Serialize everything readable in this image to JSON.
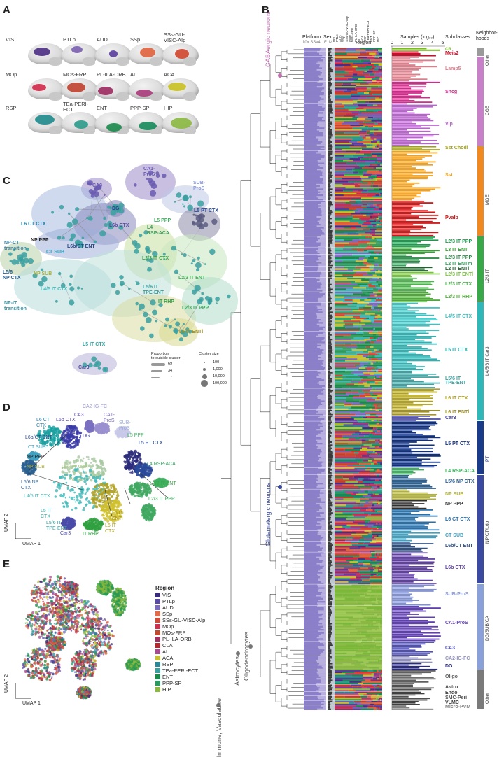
{
  "panels": {
    "a": "A",
    "b": "B",
    "c": "C",
    "d": "D",
    "e": "E"
  },
  "panel_a": {
    "regions": [
      {
        "label": "VIS",
        "color": "#4b2d83"
      },
      {
        "label": "PTLp",
        "color": "#7a5fb0"
      },
      {
        "label": "AUD",
        "color": "#5a3c9c"
      },
      {
        "label": "SSp",
        "color": "#e0603c"
      },
      {
        "label": "SSs-GU-\nVISC-AIp",
        "color": "#d0442c"
      },
      {
        "label": "MOp",
        "color": "#d22a4a"
      },
      {
        "label": "MOs-FRP",
        "color": "#c0402e"
      },
      {
        "label": "PL-ILA-ORB",
        "color": "#9c2a60"
      },
      {
        "label": "AI",
        "color": "#a93a7a"
      },
      {
        "label": "ACA",
        "color": "#c8c020"
      },
      {
        "label": "RSP",
        "color": "#1d8a8a"
      },
      {
        "label": "TEa-PERI-\nECT",
        "color": "#2a9a8a"
      },
      {
        "label": "ENT",
        "color": "#1a8a4a"
      },
      {
        "label": "PPP-SP",
        "color": "#158a5a"
      },
      {
        "label": "HIP",
        "color": "#8ab840"
      }
    ]
  },
  "panel_b": {
    "headers": {
      "platform": "Platform",
      "platform_sub": "10x SSv4",
      "sex": "Sex",
      "sex_sub": "F  M",
      "region": "Region",
      "samples": "Samples (log₁₀)",
      "subclasses": "Subclasses",
      "neighborhoods": "Neighbor-\nhoods"
    },
    "samples_ticks": [
      "0",
      "1",
      "2",
      "3",
      "4",
      "5"
    ],
    "region_cols": [
      "VIS",
      "PTLp",
      "AUD",
      "SSp",
      "SSs-GU-VISC-AIp",
      "MOp",
      "MOs-FRP",
      "PL-ILA-ORB",
      "AI",
      "ACA",
      "RSP",
      "TEa-PERI-ECT",
      "ENT",
      "PPP-SP",
      "HIP"
    ],
    "tree_labels": {
      "gaba": "GABAergic neurons",
      "glut": "Glutamatergic neurons",
      "oligo": "Oligodendrocytes",
      "astro": "Astrocytes",
      "immune": "Immune, Vasculature"
    },
    "subclasses": [
      {
        "label": "CR",
        "color": "#7ab82a"
      },
      {
        "label": "Meis2",
        "color": "#c8102e"
      },
      {
        "label": "Lamp5",
        "color": "#da808c"
      },
      {
        "label": "Sncg",
        "color": "#d22a8a"
      },
      {
        "label": "Vip",
        "color": "#b864cc"
      },
      {
        "label": "Sst Chodl",
        "color": "#a0a010"
      },
      {
        "label": "Sst",
        "color": "#f0a020"
      },
      {
        "label": "Pvalb",
        "color": "#d01818"
      },
      {
        "label": "L2/3 IT PPP",
        "color": "#1c9a4c"
      },
      {
        "label": "L3 IT ENT",
        "color": "#3aa03a"
      },
      {
        "label": "L2/3 IT PPP",
        "color": "#2e8b4a"
      },
      {
        "label": "L2 IT ENTm",
        "color": "#3aa060"
      },
      {
        "label": "L2 IT ENTl",
        "color": "#226030"
      },
      {
        "label": "L2/3 IT ENTl",
        "color": "#7ac040"
      },
      {
        "label": "L2/3 IT CTX",
        "color": "#50b050"
      },
      {
        "label": "L2/3 IT RHP",
        "color": "#4ea838"
      },
      {
        "label": "L4/5 IT CTX",
        "color": "#40c0c0"
      },
      {
        "label": "L5 IT CTX",
        "color": "#30b0b0"
      },
      {
        "label": "L5/6 IT\nTPE-ENT",
        "color": "#40a0a0"
      },
      {
        "label": "L6 IT CTX",
        "color": "#b0a020"
      },
      {
        "label": "L6 IT ENTl",
        "color": "#a09020"
      },
      {
        "label": "Car3",
        "color": "#4040a0"
      },
      {
        "label": "L5 PT CTX",
        "color": "#103080"
      },
      {
        "label": "L4 RSP-ACA",
        "color": "#40b060"
      },
      {
        "label": "L5/6 NP CTX",
        "color": "#2e6090"
      },
      {
        "label": "NP SUB",
        "color": "#b0b040"
      },
      {
        "label": "NP PPP",
        "color": "#303030"
      },
      {
        "label": "L6 CT CTX",
        "color": "#2a70a8"
      },
      {
        "label": "CT SUB",
        "color": "#40a0c0"
      },
      {
        "label": "L6b/CT ENT",
        "color": "#305080"
      },
      {
        "label": "L6b CTX",
        "color": "#6040a0"
      },
      {
        "label": "SUB-ProS",
        "color": "#8090d0"
      },
      {
        "label": "CA1-ProS",
        "color": "#6040b0"
      },
      {
        "label": "CA3",
        "color": "#5050b0"
      },
      {
        "label": "CA2-IG-FC",
        "color": "#9090c0"
      },
      {
        "label": "DG",
        "color": "#2a2a80"
      },
      {
        "label": "Oligo",
        "color": "#606060"
      },
      {
        "label": "Astro",
        "color": "#505050"
      },
      {
        "label": "Endo",
        "color": "#404040"
      },
      {
        "label": "SMC-Peri",
        "color": "#505050"
      },
      {
        "label": "VLMC",
        "color": "#404040"
      },
      {
        "label": "Micro-PVM",
        "color": "#808080"
      }
    ],
    "neighborhoods": [
      {
        "label": "Other",
        "color": "#9a9a9a"
      },
      {
        "label": "CGE",
        "color": "#c880c8"
      },
      {
        "label": "MGE",
        "color": "#f08a20"
      },
      {
        "label": "L2/3 IT",
        "color": "#38a848"
      },
      {
        "label": "L4/5/6 IT Car3",
        "color": "#30b8b8"
      },
      {
        "label": "PT",
        "color": "#1a3a8a"
      },
      {
        "label": "NP/CT/L6b",
        "color": "#3a4aa0"
      },
      {
        "label": "DG/SUB/CA",
        "color": "#8aa0d8"
      },
      {
        "label": "Other",
        "color": "#7a7a7a"
      }
    ]
  },
  "panel_c": {
    "clusters": [
      {
        "label": "CA1-\nProS",
        "color": "#6a5ab0"
      },
      {
        "label": "CA3",
        "color": "#6a5ab0"
      },
      {
        "label": "DG",
        "color": "#3a3a90"
      },
      {
        "label": "SUB-\nProS",
        "color": "#8a9ad8"
      },
      {
        "label": "L5 PT CTX",
        "color": "#2a4a9a"
      },
      {
        "label": "L6 CT CTX",
        "color": "#2a80a8"
      },
      {
        "label": "L6b CTX",
        "color": "#5a4aa0"
      },
      {
        "label": "L5 PPP",
        "color": "#40b060"
      },
      {
        "label": "NP PPP",
        "color": "#222222"
      },
      {
        "label": "L6b/CT ENT",
        "color": "#2a4a8a"
      },
      {
        "label": "L4\nRSP-ACA",
        "color": "#3aa060"
      },
      {
        "label": "NP-CT\ntransition",
        "color": "#3a80a0"
      },
      {
        "label": "CT SUB",
        "color": "#3aa0c0"
      },
      {
        "label": "L2/3 IT CTX",
        "color": "#38a848"
      },
      {
        "label": "NP SUB",
        "color": "#a8b040"
      },
      {
        "label": "L5/6\nNP CTX",
        "color": "#2a6090"
      },
      {
        "label": "L2/3 IT ENT",
        "color": "#4ab060"
      },
      {
        "label": "L4/5 IT CTX",
        "color": "#40b8b8"
      },
      {
        "label": "L5/6 IT\nTPE-ENT",
        "color": "#3a9a9a"
      },
      {
        "label": "NP-IT\ntransition",
        "color": "#3a90a0"
      },
      {
        "label": "IT RHP",
        "color": "#30a040"
      },
      {
        "label": "L2/3 IT PPP",
        "color": "#40a860"
      },
      {
        "label": "L5 IT CTX",
        "color": "#30a8a8"
      },
      {
        "label": "L6 IT ENTl",
        "color": "#a09020"
      },
      {
        "label": "Car3",
        "color": "#4a4aa0"
      }
    ],
    "legend": {
      "prop_title": "Proportion\nto outside cluster",
      "prop_values": [
        "69",
        "34",
        "17"
      ],
      "size_title": "Cluster size",
      "size_values": [
        "100",
        "1,000",
        "10,000",
        "100,000"
      ]
    }
  },
  "panel_d": {
    "labels": [
      {
        "label": "CA2-IG-FC",
        "color": "#9a9ad0"
      },
      {
        "label": "CA1-\nProS",
        "color": "#7a6ab8"
      },
      {
        "label": "CA3",
        "color": "#5a4aa8"
      },
      {
        "label": "L6 CT\nCTX",
        "color": "#2a80a8"
      },
      {
        "label": "L6b CTX",
        "color": "#5a4aa0"
      },
      {
        "label": "DG",
        "color": "#3a3a90"
      },
      {
        "label": "SUB-\nProS",
        "color": "#9aa8d8"
      },
      {
        "label": "L5 PPP",
        "color": "#40b060"
      },
      {
        "label": "L6b/CT ENT",
        "color": "#2a4a8a"
      },
      {
        "label": "L5 PT CTX",
        "color": "#1a3a8a"
      },
      {
        "label": "CT SUB",
        "color": "#3aa0c0"
      },
      {
        "label": "NP PPP",
        "color": "#222222"
      },
      {
        "label": "NP SUB",
        "color": "#a8b040"
      },
      {
        "label": "L2/3 IT CTX",
        "color": "#a8c880"
      },
      {
        "label": "L4 RSP-ACA",
        "color": "#3aa060"
      },
      {
        "label": "L5/6 NP\nCTX",
        "color": "#2a6090"
      },
      {
        "label": "L2/3 IT ENT",
        "color": "#38a848"
      },
      {
        "label": "L4/5 IT CTX",
        "color": "#40b8b8"
      },
      {
        "label": "L2/3 IT PPP",
        "color": "#40a860"
      },
      {
        "label": "L5 IT\nCTX",
        "color": "#30a8a8"
      },
      {
        "label": "L5/6 IT\nTPE-ENT",
        "color": "#3a9a9a"
      },
      {
        "label": "L6 IT\nENTl",
        "color": "#a09020"
      },
      {
        "label": "L6 IT\nCTX",
        "color": "#b0a020"
      },
      {
        "label": "Car3",
        "color": "#4a4aa0"
      },
      {
        "label": "IT RHP",
        "color": "#30a040"
      }
    ],
    "axis_x": "UMAP 1",
    "axis_y": "UMAP 2"
  },
  "panel_e": {
    "legend_title": "Region",
    "legend": [
      {
        "label": "VIS",
        "color": "#3a2a7a"
      },
      {
        "label": "PTLp",
        "color": "#5a4aa8"
      },
      {
        "label": "AUD",
        "color": "#7a6ac0"
      },
      {
        "label": "SSp",
        "color": "#e06a4a"
      },
      {
        "label": "SSs-GU-VISC-AIp",
        "color": "#d04a3a"
      },
      {
        "label": "MOp",
        "color": "#d03050"
      },
      {
        "label": "MOs-FRP",
        "color": "#c04a30"
      },
      {
        "label": "PL-ILA-ORB",
        "color": "#a03060"
      },
      {
        "label": "CLA",
        "color": "#b02a30"
      },
      {
        "label": "AI",
        "color": "#a84a90"
      },
      {
        "label": "ACA",
        "color": "#c8c030"
      },
      {
        "label": "RSP",
        "color": "#2a8a9a"
      },
      {
        "label": "TEa-PERI-ECT",
        "color": "#3aa0a0"
      },
      {
        "label": "ENT",
        "color": "#1a8a4a"
      },
      {
        "label": "PPP-SP",
        "color": "#2a9a60"
      },
      {
        "label": "HIP",
        "color": "#8ab840"
      }
    ],
    "axis_x": "UMAP 1",
    "axis_y": "UMAP 2"
  }
}
